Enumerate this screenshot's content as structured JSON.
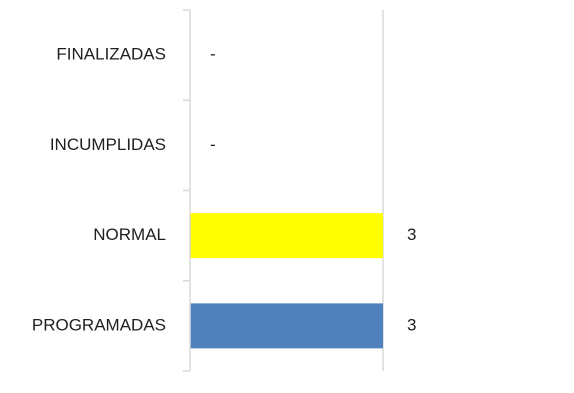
{
  "chart_data": {
    "type": "bar",
    "orientation": "horizontal",
    "categories": [
      "FINALIZADAS",
      "INCUMPLIDAS",
      "NORMAL",
      "PROGRAMADAS"
    ],
    "values": [
      0,
      0,
      3,
      3
    ],
    "data_labels": [
      "-",
      "-",
      "3",
      "3"
    ],
    "bar_colors": [
      "#4f81bd",
      "#4f81bd",
      "#ffff00",
      "#4f81bd"
    ],
    "xlim": [
      0,
      6
    ],
    "x_gridlines": [
      3,
      6
    ],
    "grid": true,
    "legend": "none",
    "title": "",
    "xlabel": "",
    "ylabel": ""
  }
}
